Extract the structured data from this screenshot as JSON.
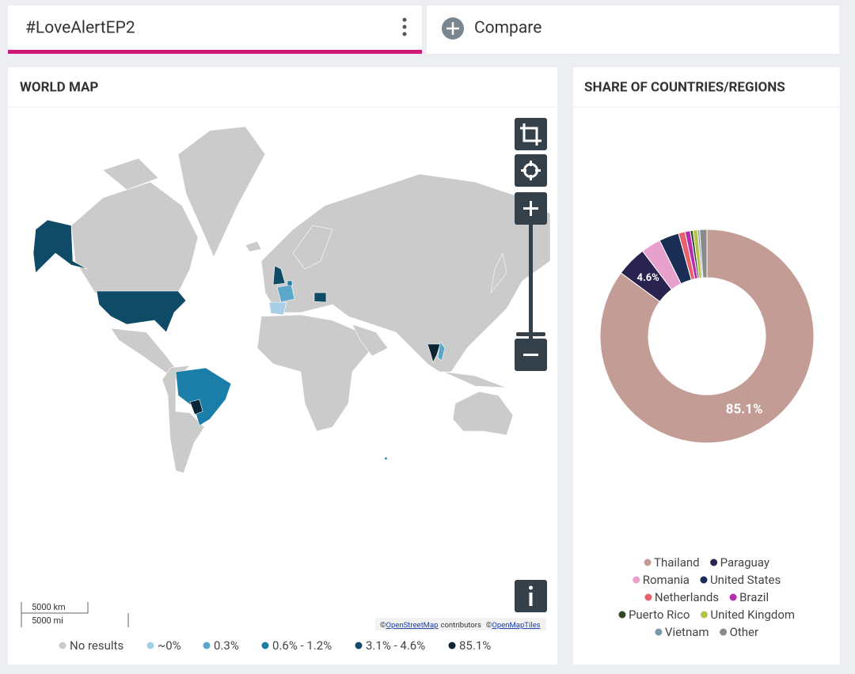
{
  "tabs": {
    "active": "#LoveAlertEP2",
    "compare": "Compare"
  },
  "map_panel": {
    "title": "WORLD MAP",
    "scale": {
      "km": "5000 km",
      "mi": "5000 mi"
    },
    "attribution": {
      "osm_prefix": "©",
      "osm": "OpenStreetMap",
      "contributors": "contributors",
      "omt_prefix": "©",
      "omt": "OpenMapTiles"
    },
    "legend": [
      {
        "label": "No results",
        "color": "#cbcbcb"
      },
      {
        "label": "~0%",
        "color": "#a9cfe6"
      },
      {
        "label": "0.3%",
        "color": "#5aa7c9"
      },
      {
        "label": "0.6% - 1.2%",
        "color": "#1b7ea8"
      },
      {
        "label": "3.1% - 4.6%",
        "color": "#0f4a66"
      },
      {
        "label": "85.1%",
        "color": "#0b2536"
      }
    ]
  },
  "chart_data": {
    "type": "pie",
    "donut": true,
    "title": "SHARE OF COUNTRIES/REGIONS",
    "categories": [
      "Thailand",
      "Paraguay",
      "Romania",
      "United States",
      "Netherlands",
      "Brazil",
      "Puerto Rico",
      "United Kingdom",
      "Vietnam",
      "Other"
    ],
    "values": [
      85.1,
      4.6,
      3.0,
      3.0,
      1.0,
      0.8,
      0.4,
      0.7,
      0.3,
      1.1
    ],
    "value_labels": [
      "85.1%",
      "4.6%",
      null,
      null,
      null,
      null,
      null,
      null,
      null,
      null
    ],
    "colors": [
      "#c49c96",
      "#2a2350",
      "#e8a0cc",
      "#1a2e55",
      "#e8606a",
      "#b52fb0",
      "#2d4a1e",
      "#b7c24a",
      "#7a9aa8",
      "#8a8a8a"
    ]
  }
}
